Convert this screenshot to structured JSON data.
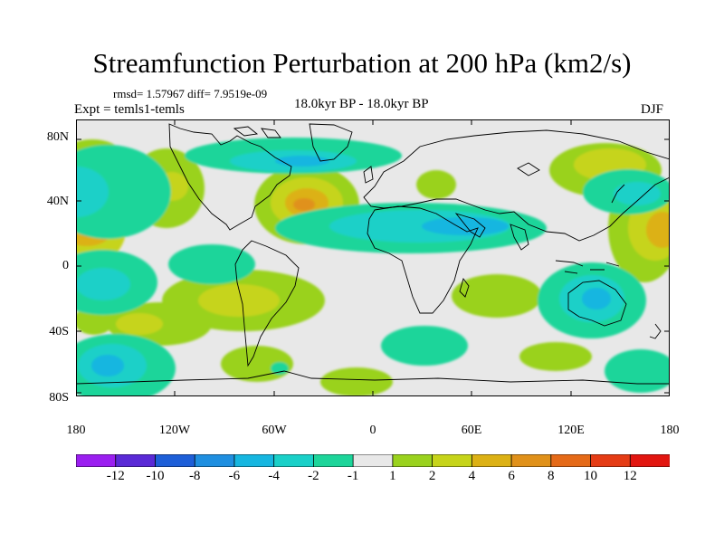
{
  "title": "Streamfunction Perturbation at 200 hPa (km2/s)",
  "stats": {
    "rmsd_label": "rmsd=",
    "rmsd": "1.57967",
    "diff_label": "diff=",
    "diff": "7.9519e-09"
  },
  "experiment": "Expt = temls1-temls",
  "period": "18.0kyr BP - 18.0kyr BP",
  "season": "DJF",
  "axes": {
    "lat_ticks": [
      "80N",
      "40N",
      "0",
      "40S",
      "80S"
    ],
    "lon_ticks": [
      "180",
      "120W",
      "60W",
      "0",
      "60E",
      "120E",
      "180"
    ]
  },
  "colorbar": {
    "labels": [
      "-12",
      "-10",
      "-8",
      "-6",
      "-4",
      "-2",
      "-1",
      "1",
      "2",
      "4",
      "6",
      "8",
      "10",
      "12"
    ],
    "colors": [
      "#9b1ff0",
      "#5a2ad6",
      "#1e5fd8",
      "#1f8fe0",
      "#16b6e0",
      "#1ad0c8",
      "#1dd59a",
      "#e8e8e8",
      "#9ad21e",
      "#c6d41a",
      "#dcb115",
      "#e0911a",
      "#e56a18",
      "#e53c15",
      "#e21610"
    ]
  },
  "palette": {
    "background": "#e8e8e8",
    "coast": "#000000"
  }
}
